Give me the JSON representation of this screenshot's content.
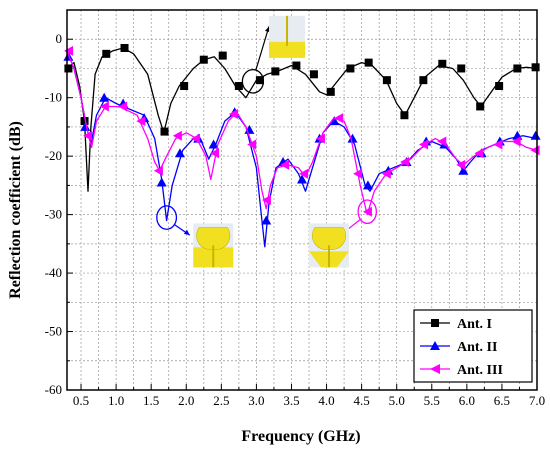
{
  "chart_data": {
    "type": "line",
    "xlabel": "Frequency (GHz)",
    "ylabel": "Reflection coefficient (dB)",
    "xlim": [
      0.3,
      7.0
    ],
    "ylim": [
      -60,
      5
    ],
    "xticks": [
      "0.5",
      "1.0",
      "1.5",
      "2.0",
      "2.5",
      "3.0",
      "3.5",
      "4.0",
      "4.5",
      "5.0",
      "5.5",
      "6.0",
      "6.5",
      "7.0"
    ],
    "yticks": [
      "0",
      "-10",
      "-20",
      "-30",
      "-40",
      "-50",
      "-60"
    ],
    "grid": true,
    "legend_position": "bottom-right",
    "series": [
      {
        "name": "Ant. I",
        "color": "#000000",
        "marker": "square",
        "curve": [
          [
            0.3,
            -5
          ],
          [
            0.4,
            -4
          ],
          [
            0.48,
            -8
          ],
          [
            0.55,
            -14
          ],
          [
            0.6,
            -26
          ],
          [
            0.64,
            -15
          ],
          [
            0.7,
            -6
          ],
          [
            0.8,
            -3
          ],
          [
            0.95,
            -2
          ],
          [
            1.1,
            -1.5
          ],
          [
            1.25,
            -2.5
          ],
          [
            1.45,
            -6
          ],
          [
            1.6,
            -13
          ],
          [
            1.68,
            -16
          ],
          [
            1.78,
            -11
          ],
          [
            1.9,
            -8
          ],
          [
            2.1,
            -5
          ],
          [
            2.25,
            -3.5
          ],
          [
            2.4,
            -3
          ],
          [
            2.55,
            -5
          ],
          [
            2.7,
            -8
          ],
          [
            2.85,
            -10
          ],
          [
            3.0,
            -7
          ],
          [
            3.15,
            -6
          ],
          [
            3.3,
            -5.5
          ],
          [
            3.5,
            -4.5
          ],
          [
            3.7,
            -6
          ],
          [
            3.9,
            -9
          ],
          [
            4.0,
            -9.5
          ],
          [
            4.1,
            -8
          ],
          [
            4.3,
            -5
          ],
          [
            4.5,
            -4
          ],
          [
            4.65,
            -4.5
          ],
          [
            4.85,
            -7
          ],
          [
            5.0,
            -11
          ],
          [
            5.12,
            -13
          ],
          [
            5.25,
            -10
          ],
          [
            5.4,
            -6.5
          ],
          [
            5.6,
            -4.5
          ],
          [
            5.8,
            -5
          ],
          [
            5.95,
            -7
          ],
          [
            6.1,
            -10
          ],
          [
            6.2,
            -11.5
          ],
          [
            6.35,
            -9
          ],
          [
            6.5,
            -6.5
          ],
          [
            6.7,
            -5
          ],
          [
            6.85,
            -4.8
          ],
          [
            7.0,
            -5
          ]
        ],
        "markers": [
          [
            0.32,
            -5
          ],
          [
            0.55,
            -14
          ],
          [
            0.86,
            -2.5
          ],
          [
            1.12,
            -1.5
          ],
          [
            1.69,
            -15.8
          ],
          [
            1.97,
            -8
          ],
          [
            2.25,
            -3.5
          ],
          [
            2.52,
            -2.8
          ],
          [
            2.75,
            -8
          ],
          [
            3.05,
            -7
          ],
          [
            3.27,
            -5.5
          ],
          [
            3.57,
            -4.5
          ],
          [
            3.82,
            -6
          ],
          [
            4.06,
            -9
          ],
          [
            4.34,
            -5
          ],
          [
            4.6,
            -4
          ],
          [
            4.86,
            -7
          ],
          [
            5.11,
            -13
          ],
          [
            5.38,
            -7
          ],
          [
            5.65,
            -4.2
          ],
          [
            5.92,
            -5
          ],
          [
            6.19,
            -11.5
          ],
          [
            6.46,
            -8
          ],
          [
            6.72,
            -5
          ],
          [
            6.98,
            -4.8
          ]
        ]
      },
      {
        "name": "Ant. II",
        "color": "#0000ff",
        "marker": "triangle-up",
        "curve": [
          [
            0.3,
            -2
          ],
          [
            0.4,
            -5
          ],
          [
            0.5,
            -10
          ],
          [
            0.58,
            -15
          ],
          [
            0.64,
            -18
          ],
          [
            0.72,
            -13
          ],
          [
            0.85,
            -10
          ],
          [
            1.0,
            -11
          ],
          [
            1.2,
            -12
          ],
          [
            1.4,
            -13
          ],
          [
            1.55,
            -17
          ],
          [
            1.65,
            -24
          ],
          [
            1.72,
            -31
          ],
          [
            1.8,
            -25
          ],
          [
            1.95,
            -19
          ],
          [
            2.1,
            -17
          ],
          [
            2.2,
            -17
          ],
          [
            2.32,
            -20.5
          ],
          [
            2.42,
            -18
          ],
          [
            2.55,
            -14
          ],
          [
            2.7,
            -12.5
          ],
          [
            2.85,
            -15
          ],
          [
            3.0,
            -22
          ],
          [
            3.07,
            -30
          ],
          [
            3.12,
            -35.5
          ],
          [
            3.18,
            -28
          ],
          [
            3.28,
            -22
          ],
          [
            3.45,
            -20.5
          ],
          [
            3.6,
            -23
          ],
          [
            3.7,
            -26
          ],
          [
            3.8,
            -22
          ],
          [
            3.95,
            -16
          ],
          [
            4.1,
            -14
          ],
          [
            4.25,
            -15
          ],
          [
            4.4,
            -18
          ],
          [
            4.55,
            -25
          ],
          [
            4.62,
            -26
          ],
          [
            4.75,
            -23
          ],
          [
            4.95,
            -22
          ],
          [
            5.15,
            -21
          ],
          [
            5.3,
            -19
          ],
          [
            5.5,
            -17.5
          ],
          [
            5.7,
            -18.5
          ],
          [
            5.85,
            -20.5
          ],
          [
            5.95,
            -22.5
          ],
          [
            6.05,
            -21
          ],
          [
            6.2,
            -19
          ],
          [
            6.4,
            -18
          ],
          [
            6.6,
            -17
          ],
          [
            6.8,
            -16.5
          ],
          [
            7.0,
            -17
          ]
        ],
        "markers": [
          [
            0.32,
            -3
          ],
          [
            0.56,
            -15
          ],
          [
            0.83,
            -10
          ],
          [
            1.1,
            -11
          ],
          [
            1.4,
            -13.5
          ],
          [
            1.65,
            -24.5
          ],
          [
            1.91,
            -19.5
          ],
          [
            2.17,
            -17
          ],
          [
            2.39,
            -18
          ],
          [
            2.69,
            -12.5
          ],
          [
            2.9,
            -15.5
          ],
          [
            3.14,
            -31
          ],
          [
            3.38,
            -21
          ],
          [
            3.65,
            -24
          ],
          [
            3.9,
            -17
          ],
          [
            4.11,
            -14
          ],
          [
            4.37,
            -17
          ],
          [
            4.59,
            -25
          ],
          [
            4.88,
            -22.5
          ],
          [
            5.14,
            -21
          ],
          [
            5.42,
            -17.5
          ],
          [
            5.68,
            -18
          ],
          [
            5.95,
            -22.5
          ],
          [
            6.21,
            -19.5
          ],
          [
            6.47,
            -17.5
          ],
          [
            6.72,
            -16.5
          ],
          [
            6.98,
            -16.5
          ]
        ]
      },
      {
        "name": "Ant. III",
        "color": "#ff00ff",
        "marker": "triangle-left",
        "curve": [
          [
            0.3,
            -2
          ],
          [
            0.4,
            -5
          ],
          [
            0.5,
            -10
          ],
          [
            0.58,
            -15
          ],
          [
            0.65,
            -18.5
          ],
          [
            0.72,
            -14
          ],
          [
            0.85,
            -11.5
          ],
          [
            1.05,
            -11.5
          ],
          [
            1.3,
            -13
          ],
          [
            1.45,
            -17
          ],
          [
            1.55,
            -21
          ],
          [
            1.62,
            -22.5
          ],
          [
            1.72,
            -20
          ],
          [
            1.85,
            -17
          ],
          [
            2.0,
            -16
          ],
          [
            2.15,
            -17
          ],
          [
            2.28,
            -20
          ],
          [
            2.35,
            -24
          ],
          [
            2.45,
            -18
          ],
          [
            2.6,
            -14
          ],
          [
            2.72,
            -12.5
          ],
          [
            2.85,
            -15
          ],
          [
            3.0,
            -20
          ],
          [
            3.08,
            -26
          ],
          [
            3.14,
            -29
          ],
          [
            3.2,
            -25
          ],
          [
            3.3,
            -22
          ],
          [
            3.45,
            -21.5
          ],
          [
            3.6,
            -22
          ],
          [
            3.7,
            -23.5
          ],
          [
            3.8,
            -21
          ],
          [
            3.95,
            -16
          ],
          [
            4.1,
            -13.5
          ],
          [
            4.25,
            -14
          ],
          [
            4.35,
            -17
          ],
          [
            4.48,
            -25
          ],
          [
            4.58,
            -30
          ],
          [
            4.68,
            -26
          ],
          [
            4.85,
            -23
          ],
          [
            5.0,
            -22
          ],
          [
            5.2,
            -20.5
          ],
          [
            5.4,
            -18
          ],
          [
            5.55,
            -17
          ],
          [
            5.7,
            -18
          ],
          [
            5.85,
            -20.5
          ],
          [
            5.95,
            -21.5
          ],
          [
            6.1,
            -20
          ],
          [
            6.3,
            -18.5
          ],
          [
            6.5,
            -17.5
          ],
          [
            6.7,
            -17.5
          ],
          [
            6.85,
            -18.5
          ],
          [
            7.0,
            -19
          ]
        ],
        "markers": [
          [
            0.33,
            -2
          ],
          [
            0.6,
            -16.5
          ],
          [
            0.84,
            -11.5
          ],
          [
            1.1,
            -11.5
          ],
          [
            1.36,
            -14
          ],
          [
            1.61,
            -22.5
          ],
          [
            1.88,
            -16.5
          ],
          [
            2.14,
            -17
          ],
          [
            2.41,
            -19.5
          ],
          [
            2.68,
            -12.8
          ],
          [
            2.94,
            -18
          ],
          [
            3.15,
            -27.5
          ],
          [
            3.41,
            -21.5
          ],
          [
            3.68,
            -23
          ],
          [
            3.92,
            -17
          ],
          [
            4.18,
            -13.5
          ],
          [
            4.45,
            -23
          ],
          [
            4.59,
            -29.5
          ],
          [
            4.86,
            -23
          ],
          [
            5.12,
            -21
          ],
          [
            5.39,
            -18
          ],
          [
            5.65,
            -17.5
          ],
          [
            5.92,
            -21.5
          ],
          [
            6.18,
            -19.5
          ],
          [
            6.45,
            -18
          ],
          [
            6.71,
            -17.5
          ],
          [
            6.98,
            -19
          ]
        ]
      }
    ],
    "annotations": [
      {
        "shape": "ellipse",
        "x": 2.95,
        "y": -7.2,
        "rx": 0.15,
        "ry": 2.0,
        "color": "#000000",
        "arrow_to": [
          3.18,
          2.2
        ]
      },
      {
        "shape": "ellipse",
        "x": 1.72,
        "y": -30.5,
        "rx": 0.14,
        "ry": 2.0,
        "color": "#0000ff",
        "arrow_to": [
          2.05,
          -33.5
        ]
      },
      {
        "shape": "ellipse",
        "x": 4.58,
        "y": -29.5,
        "rx": 0.13,
        "ry": 2.0,
        "color": "#ff00ff",
        "arrow_to": [
          4.2,
          -33.5
        ]
      }
    ],
    "insets": [
      {
        "name": "antenna-one-inset",
        "x": 3.18,
        "y": 4.0
      },
      {
        "name": "antenna-two-inset",
        "x": 2.1,
        "y": -31.5
      },
      {
        "name": "antenna-three-inset",
        "x": 3.75,
        "y": -31.5
      }
    ]
  }
}
